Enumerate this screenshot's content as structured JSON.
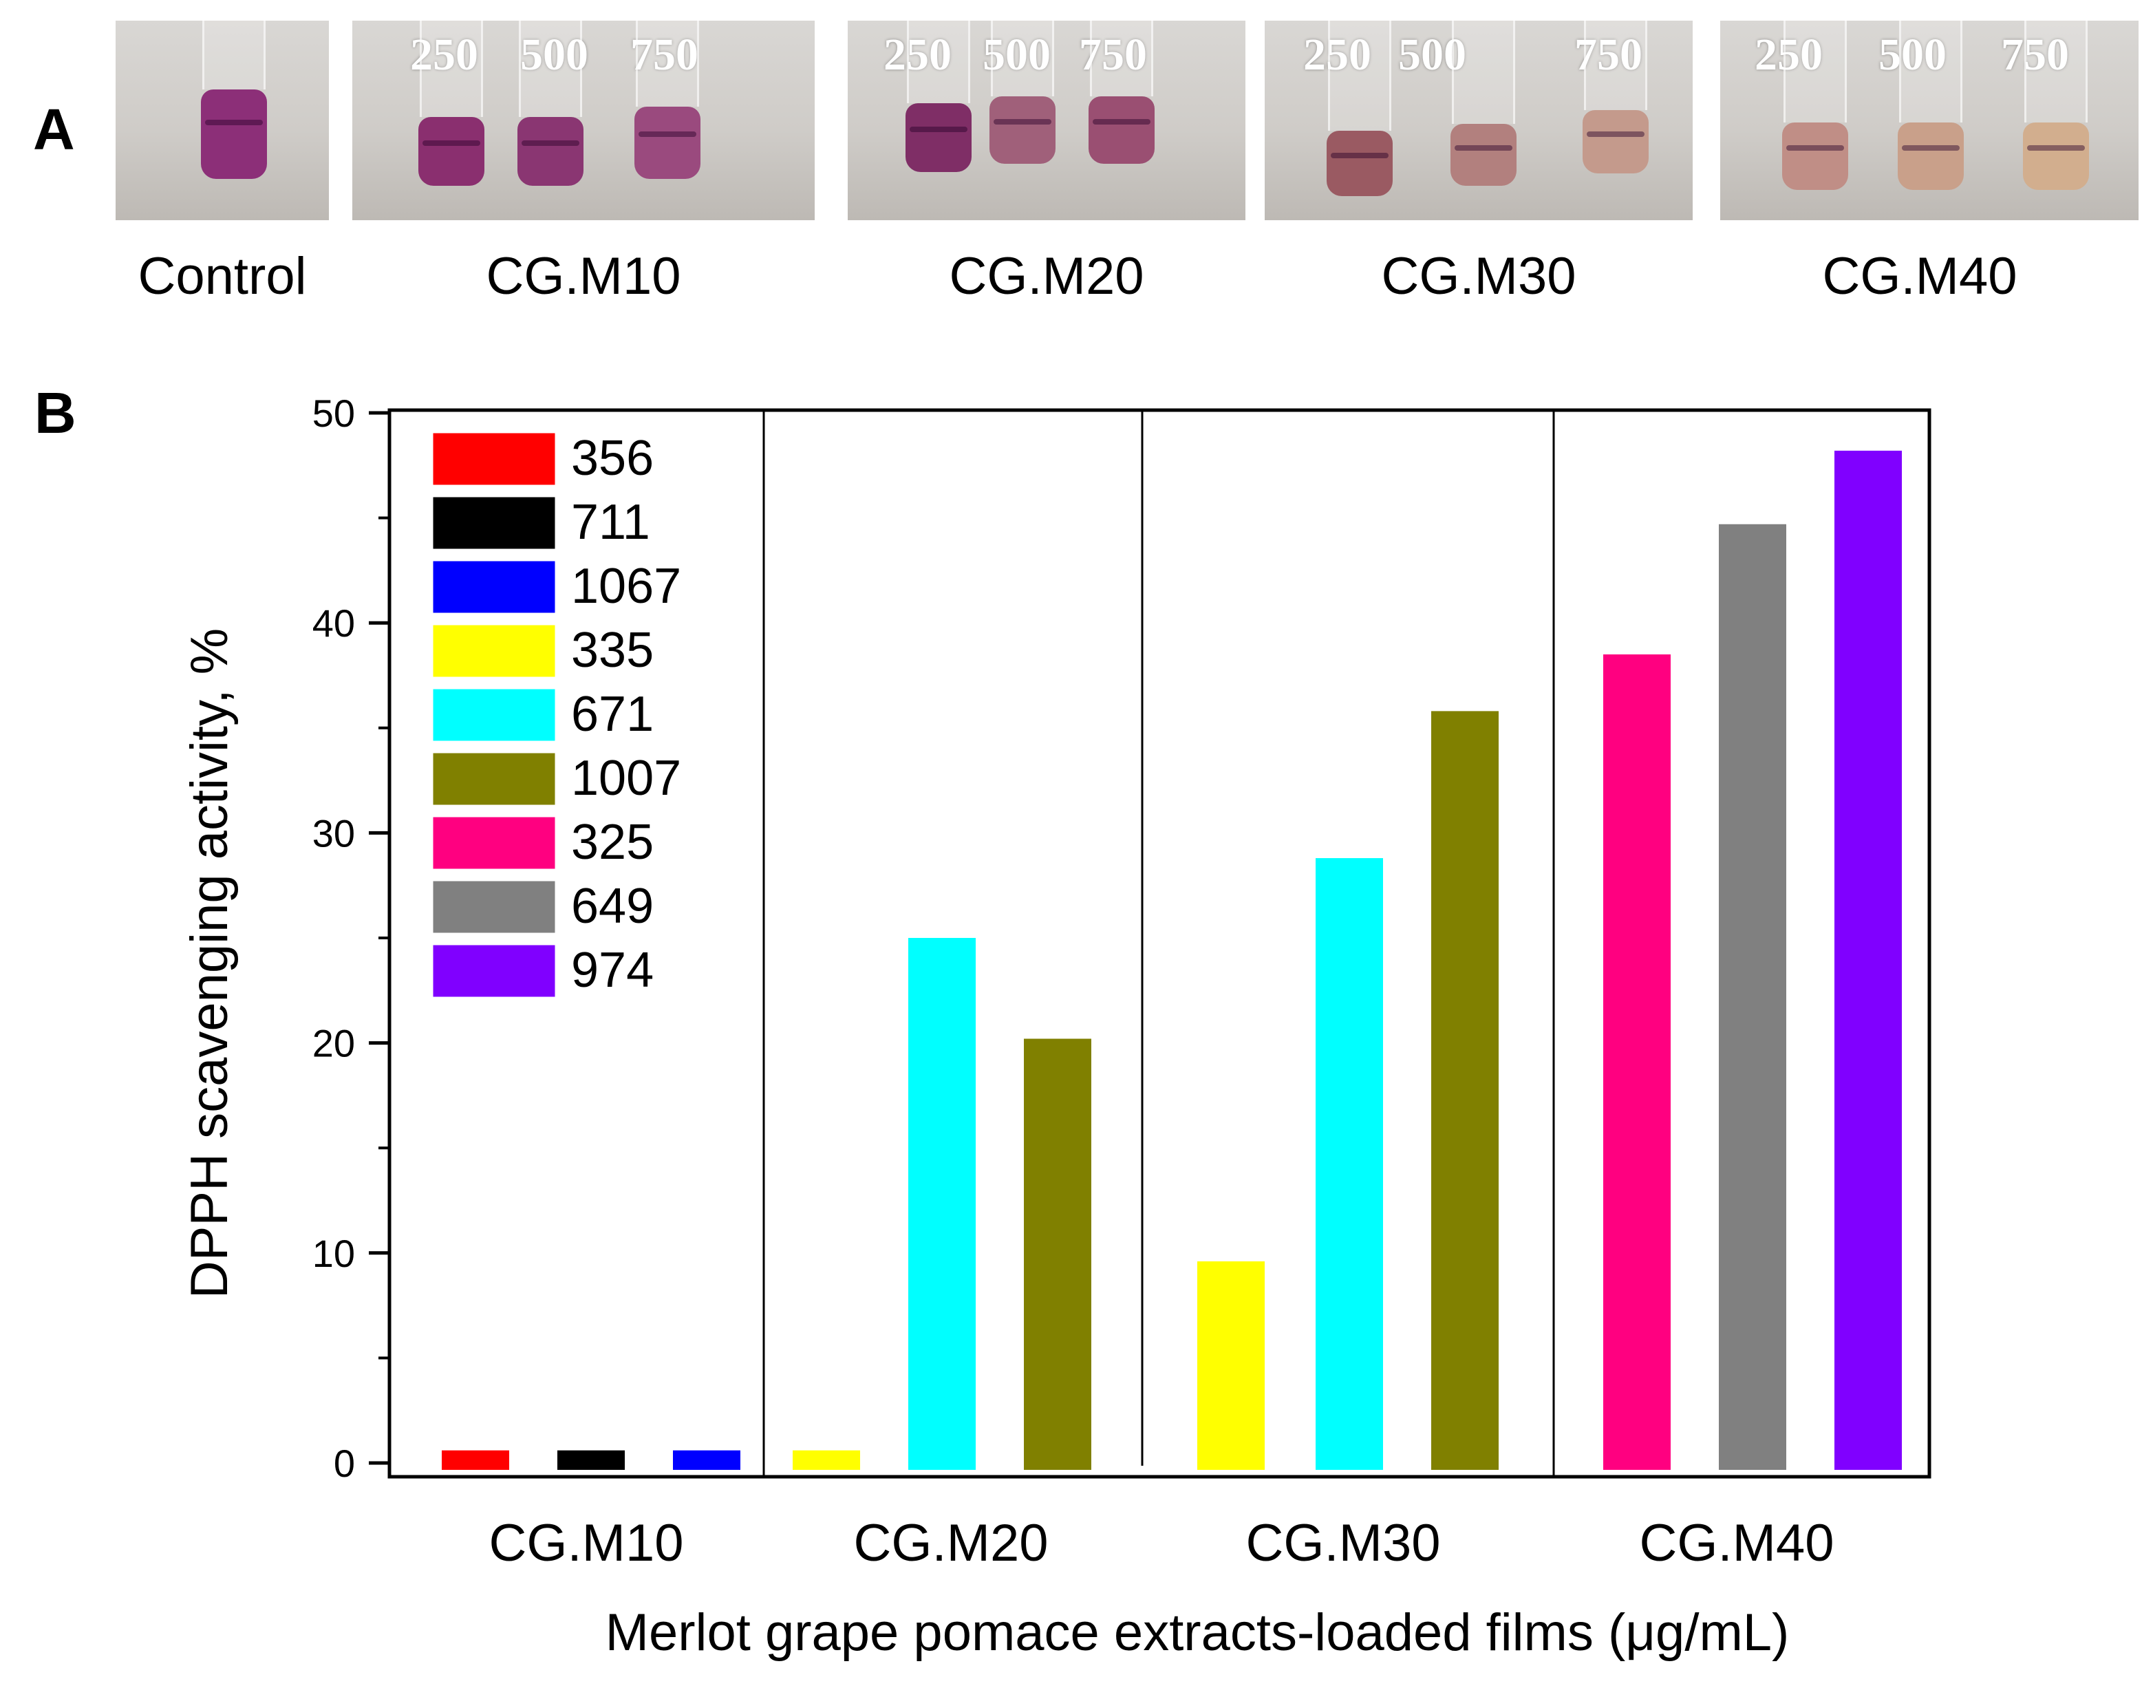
{
  "panel_a": {
    "letter": "A",
    "control_label": "Control",
    "samples": [
      {
        "name": "CG.M10",
        "concentrations": [
          "250",
          "500",
          "750"
        ],
        "tube_colors": [
          "#8a2f6f",
          "#8a3672",
          "#9a4a7e"
        ]
      },
      {
        "name": "CG.M20",
        "concentrations": [
          "250",
          "500",
          "750"
        ],
        "tube_colors": [
          "#7f2e66",
          "#a0607a",
          "#9a4f72"
        ]
      },
      {
        "name": "CG.M30",
        "concentrations": [
          "250",
          "500",
          "750"
        ],
        "tube_colors": [
          "#9a5a62",
          "#b2807e",
          "#c49a8c"
        ]
      },
      {
        "name": "CG.M40",
        "concentrations": [
          "250",
          "500",
          "750"
        ],
        "tube_colors": [
          "#c08e86",
          "#c9a08a",
          "#d2ae8e"
        ]
      }
    ],
    "control_tube_color": "#8c2f78"
  },
  "panel_b": {
    "letter": "B"
  },
  "chart_data": {
    "type": "bar",
    "title": "",
    "xlabel": "Merlot grape pomace extracts-loaded films (μg/mL)",
    "ylabel": "DPPH scavenging activity, %",
    "ylim": [
      0,
      50
    ],
    "yticks": [
      0,
      10,
      20,
      30,
      40,
      50
    ],
    "grid": false,
    "legend_position": "top-left",
    "groups": [
      {
        "label": "CG.M10",
        "bars": [
          {
            "series": "356",
            "value": 0.0,
            "color": "#ff0000"
          },
          {
            "series": "711",
            "value": 0.0,
            "color": "#000000"
          },
          {
            "series": "1067",
            "value": 0.0,
            "color": "#0000ff"
          }
        ]
      },
      {
        "label": "CG.M20",
        "bars": [
          {
            "series": "335",
            "value": 0.0,
            "color": "#ffff00"
          },
          {
            "series": "671",
            "value": 25.0,
            "color": "#00ffff"
          },
          {
            "series": "1007",
            "value": 20.2,
            "color": "#808000"
          }
        ]
      },
      {
        "label": "CG.M30",
        "bars": [
          {
            "series": "335",
            "value": 9.6,
            "color": "#ffff00"
          },
          {
            "series": "671",
            "value": 28.8,
            "color": "#00ffff"
          },
          {
            "series": "1007",
            "value": 35.8,
            "color": "#808000"
          }
        ]
      },
      {
        "label": "CG.M40",
        "bars": [
          {
            "series": "325",
            "value": 38.5,
            "color": "#ff0080"
          },
          {
            "series": "649",
            "value": 44.7,
            "color": "#808080"
          },
          {
            "series": "974",
            "value": 48.2,
            "color": "#8000ff"
          }
        ]
      }
    ],
    "legend": [
      {
        "label": "356",
        "color": "#ff0000"
      },
      {
        "label": "711",
        "color": "#000000"
      },
      {
        "label": "1067",
        "color": "#0000ff"
      },
      {
        "label": "335",
        "color": "#ffff00"
      },
      {
        "label": "671",
        "color": "#00ffff"
      },
      {
        "label": "1007",
        "color": "#808000"
      },
      {
        "label": "325",
        "color": "#ff0080"
      },
      {
        "label": "649",
        "color": "#808080"
      },
      {
        "label": "974",
        "color": "#8000ff"
      }
    ]
  }
}
